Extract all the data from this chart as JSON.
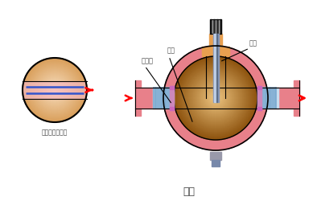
{
  "title": "球阀",
  "subtitle_left": "球体俯视剖面图",
  "label_qiuti": "球体",
  "label_mifengzuo": "密封座",
  "label_fagan": "阀杆",
  "bg_color": "#ffffff",
  "pink_color": "#E8808A",
  "blue_stripe_color": "#7AAAD0",
  "blue_stripe_bg": "#C8DDEF",
  "stem_color": "#8899BB",
  "orange_top": "#E8A050",
  "magenta_accent": "#CC66BB",
  "arrow_color": "#FF0000",
  "text_color": "#444444",
  "line_color": "#000000",
  "pink_light": "#F0B0B8"
}
